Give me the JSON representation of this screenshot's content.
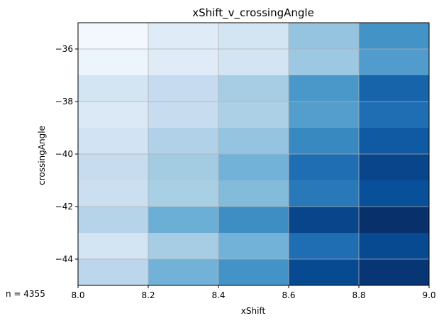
{
  "chart_data": {
    "type": "heatmap",
    "title": "xShift_v_crossingAngle",
    "xlabel": "xShift",
    "ylabel": "crossingAngle",
    "x_edges": [
      8.0,
      8.2,
      8.4,
      8.6,
      8.8,
      9.0
    ],
    "y_edges": [
      -45,
      -44,
      -43,
      -42,
      -41,
      -40,
      -39,
      -38,
      -37,
      -36,
      -35
    ],
    "x_ticks": [
      8.0,
      8.2,
      8.4,
      8.6,
      8.8,
      9.0
    ],
    "x_tick_labels": [
      "8.0",
      "8.2",
      "8.4",
      "8.6",
      "8.8",
      "9.0"
    ],
    "y_ticks": [
      -44,
      -42,
      -40,
      -38,
      -36
    ],
    "y_tick_labels": [
      "−44",
      "−42",
      "−40",
      "−38",
      "−36"
    ],
    "xlim": [
      8.0,
      9.0
    ],
    "ylim": [
      -45,
      -35
    ],
    "grid": true,
    "colormap": "Blues",
    "rows_top_to_bottom": [
      [
        0.02,
        0.12,
        0.18,
        0.4,
        0.62
      ],
      [
        0.05,
        0.12,
        0.18,
        0.38,
        0.58
      ],
      [
        0.18,
        0.25,
        0.35,
        0.6,
        0.8
      ],
      [
        0.14,
        0.24,
        0.33,
        0.57,
        0.76
      ],
      [
        0.19,
        0.32,
        0.4,
        0.66,
        0.84
      ],
      [
        0.24,
        0.36,
        0.48,
        0.76,
        0.92
      ],
      [
        0.22,
        0.34,
        0.44,
        0.72,
        0.88
      ],
      [
        0.3,
        0.5,
        0.64,
        0.92,
        1.0
      ],
      [
        0.18,
        0.35,
        0.48,
        0.76,
        0.9
      ],
      [
        0.28,
        0.48,
        0.62,
        0.9,
        0.98
      ]
    ]
  },
  "annotation": {
    "text": "n = 4355"
  }
}
